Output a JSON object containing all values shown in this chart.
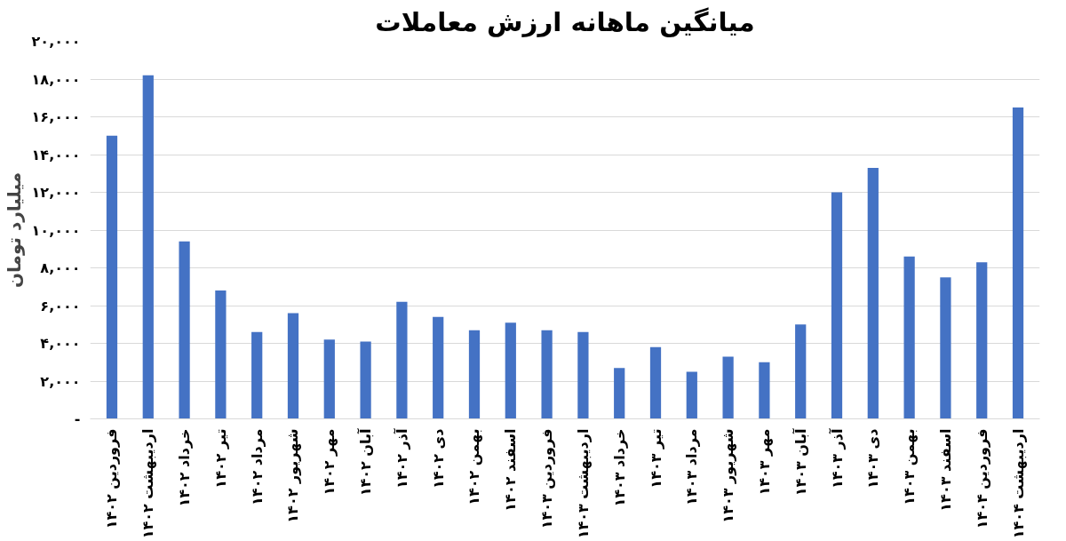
{
  "chart_data": {
    "type": "bar",
    "title": "میانگین ماهانه ارزش معاملات",
    "ylabel": "میلیارد تومان",
    "categories": [
      "فروردین ۱۴۰۲",
      "اردیبهشت ۱۴۰۲",
      "خرداد ۱۴۰۲",
      "تیر ۱۴۰۲",
      "مرداد ۱۴۰۲",
      "شهریور ۱۴۰۲",
      "مهر ۱۴۰۲",
      "آبان ۱۴۰۲",
      "آذر ۱۴۰۲",
      "دی ۱۴۰۲",
      "بهمن ۱۴۰۲",
      "اسفند ۱۴۰۲",
      "فروردین ۱۴۰۳",
      "اردیبهشت ۱۴۰۳",
      "خرداد ۱۴۰۳",
      "تیر ۱۴۰۳",
      "مرداد ۱۴۰۳",
      "شهریور ۱۴۰۳",
      "مهر ۱۴۰۳",
      "آبان ۱۴۰۳",
      "آذر ۱۴۰۳",
      "دی ۱۴۰۳",
      "بهمن ۱۴۰۳",
      "اسفند ۱۴۰۳",
      "فروردین ۱۴۰۴",
      "اردیبهشت ۱۴۰۴"
    ],
    "values": [
      15000,
      18200,
      9400,
      6800,
      4600,
      5600,
      4200,
      4100,
      6200,
      5400,
      4700,
      5100,
      4700,
      4600,
      2700,
      3800,
      2500,
      3300,
      3000,
      5000,
      12000,
      13300,
      8600,
      7500,
      8300,
      16500
    ],
    "color": "#4472c4",
    "ylim": [
      0,
      20000
    ],
    "yticks": [
      {
        "value": 0,
        "label": "-"
      },
      {
        "value": 2000,
        "label": "۲,۰۰۰"
      },
      {
        "value": 4000,
        "label": "۴,۰۰۰"
      },
      {
        "value": 6000,
        "label": "۶,۰۰۰"
      },
      {
        "value": 8000,
        "label": "۸,۰۰۰"
      },
      {
        "value": 10000,
        "label": "۱۰,۰۰۰"
      },
      {
        "value": 12000,
        "label": "۱۲,۰۰۰"
      },
      {
        "value": 14000,
        "label": "۱۴,۰۰۰"
      },
      {
        "value": 16000,
        "label": "۱۶,۰۰۰"
      },
      {
        "value": 18000,
        "label": "۱۸,۰۰۰"
      },
      {
        "value": 20000,
        "label": "۲۰,۰۰۰"
      }
    ],
    "grid": "y"
  }
}
